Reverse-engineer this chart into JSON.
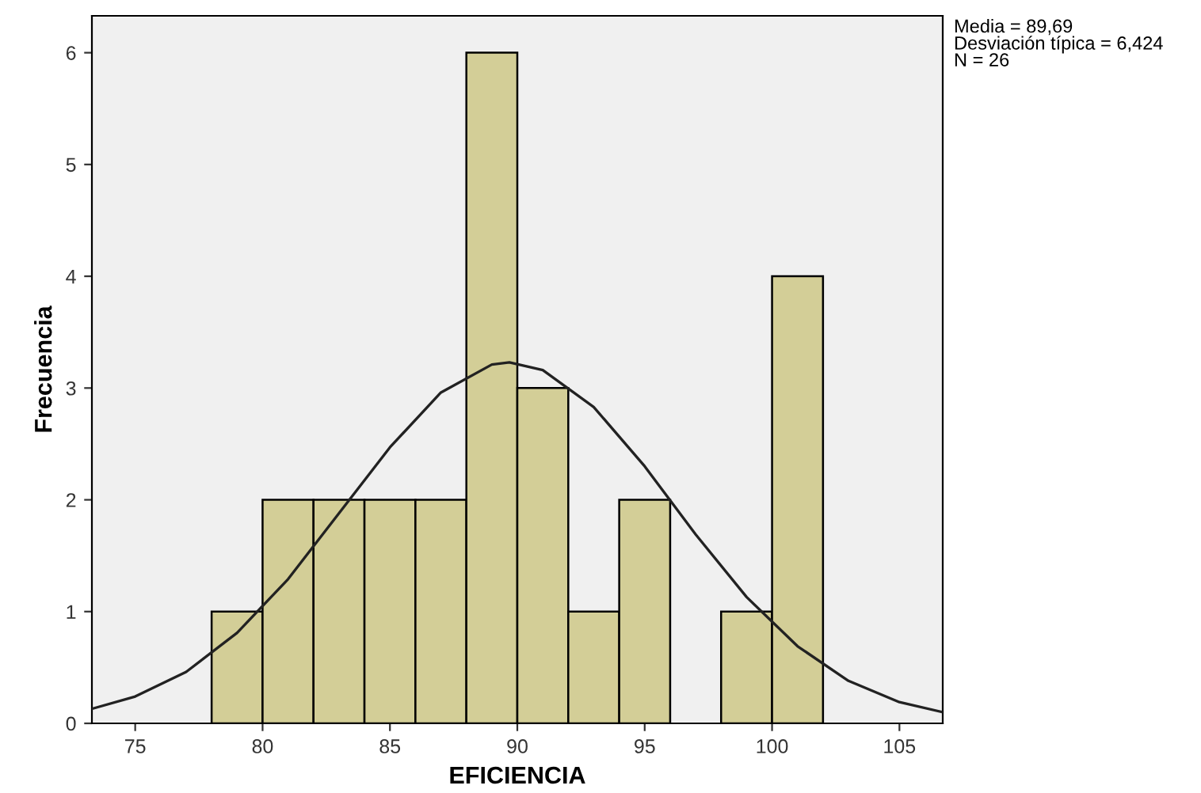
{
  "chart_data": {
    "type": "histogram",
    "xlabel": "EFICIENCIA",
    "ylabel": "Frecuencia",
    "bins": [
      78,
      80,
      82,
      84,
      86,
      88,
      90,
      92,
      94,
      96,
      98,
      100,
      102
    ],
    "values": [
      1,
      2,
      2,
      2,
      2,
      6,
      3,
      1,
      2,
      0,
      1,
      4
    ],
    "color": "#d3ce97",
    "series": [
      {
        "type": "line",
        "color": "#222222",
        "x": [
          73.3,
          75,
          77,
          79,
          81,
          83,
          85,
          87,
          89,
          89.69,
          91,
          93,
          95,
          97,
          99,
          101,
          103,
          105,
          106.7
        ],
        "values": [
          0.13,
          0.24,
          0.46,
          0.81,
          1.29,
          1.88,
          2.47,
          2.96,
          3.21,
          3.23,
          3.16,
          2.83,
          2.3,
          1.69,
          1.13,
          0.69,
          0.38,
          0.19,
          0.1
        ]
      }
    ],
    "xlim": [
      73.3,
      106.7
    ],
    "xticks": [
      75,
      80,
      85,
      90,
      95,
      100,
      105
    ],
    "ylim": [
      0,
      6.33
    ],
    "yticks": [
      0,
      1,
      2,
      3,
      4,
      5,
      6
    ],
    "grid": false,
    "legend": false,
    "annotations": [
      "Media = 89,69\nDesviación típica = 6,424\nN = 26"
    ]
  }
}
